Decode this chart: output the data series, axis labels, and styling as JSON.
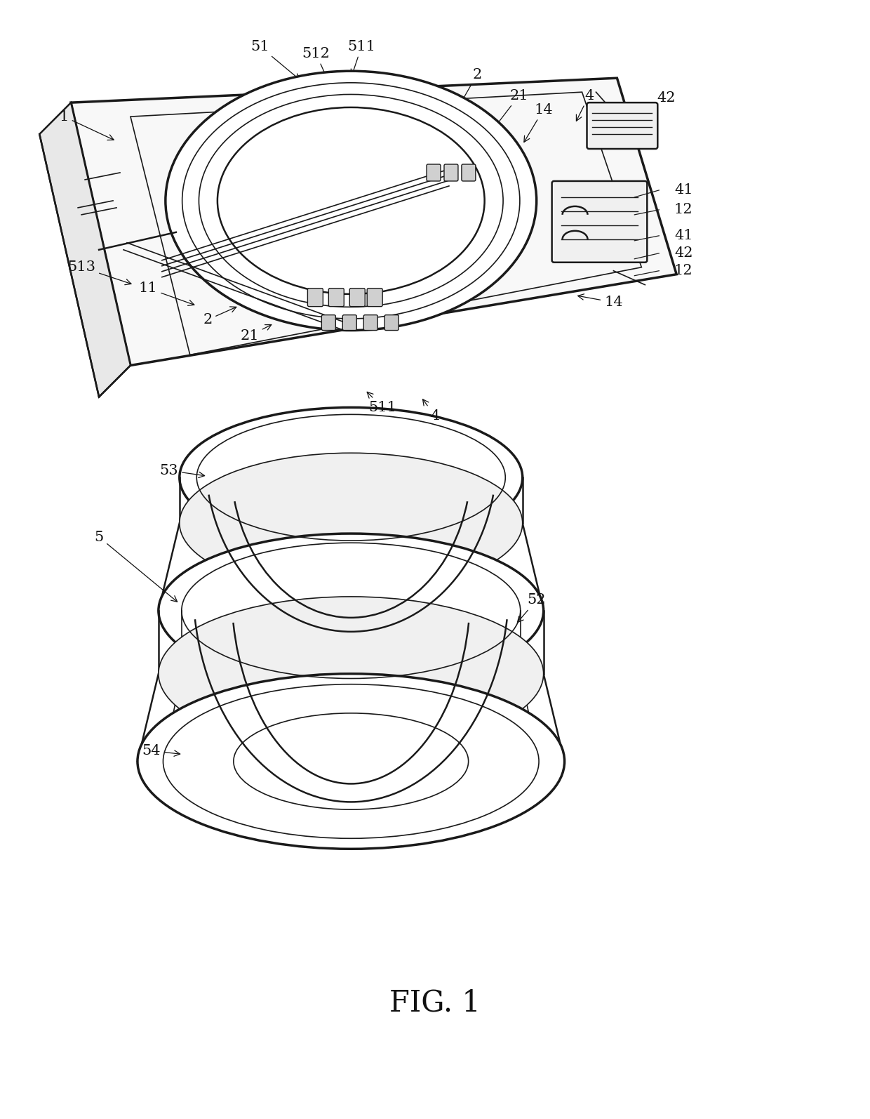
{
  "figure_label": "FIG. 1",
  "background_color": "#ffffff",
  "line_color": "#1a1a1a",
  "fig_label_text": "FIG. 1",
  "fig_label_fontsize": 30,
  "label_fontsize": 15,
  "ann_color": "#111111"
}
